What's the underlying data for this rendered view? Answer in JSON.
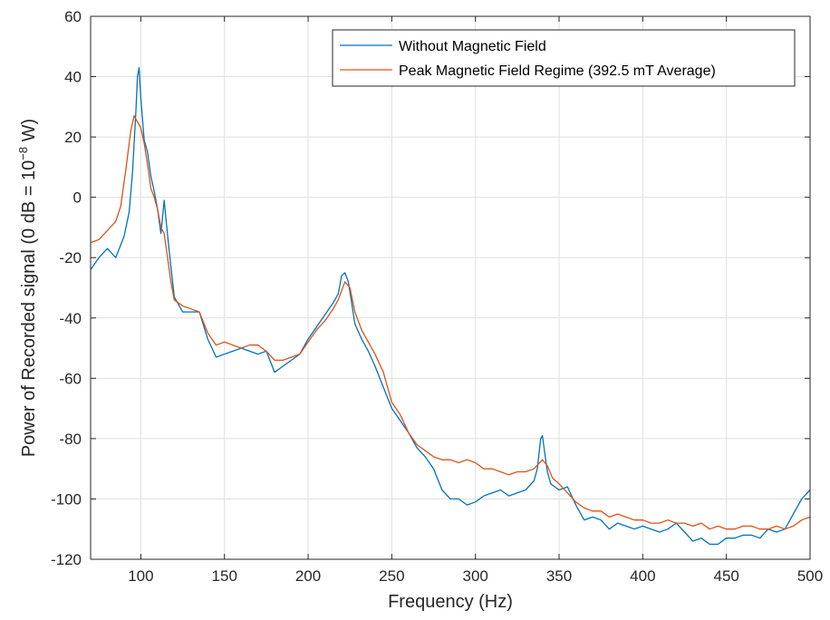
{
  "colors": {
    "series_blue": "#0072BD",
    "series_orange": "#D95319",
    "grid": "#dfdfdf",
    "axis": "#262626"
  },
  "chart_data": {
    "type": "line",
    "xlabel": "Frequency (Hz)",
    "ylabel_prefix": "Power of Recorded signal (0 dB = 10",
    "ylabel_exp": "−8",
    "ylabel_suffix": " W)",
    "xlim": [
      70,
      500
    ],
    "ylim": [
      -120,
      60
    ],
    "xticks": [
      100,
      150,
      200,
      250,
      300,
      350,
      400,
      450,
      500
    ],
    "yticks": [
      -120,
      -100,
      -80,
      -60,
      -40,
      -20,
      0,
      20,
      40,
      60
    ],
    "grid": true,
    "legend_placement": "top-right",
    "series": [
      {
        "name": "Without Magnetic Field",
        "color": "#0072BD",
        "x": [
          70,
          75,
          80,
          85,
          90,
          93,
          95,
          97,
          98,
          99,
          100,
          102,
          104,
          106,
          108,
          110,
          112,
          114,
          115,
          117,
          120,
          125,
          130,
          135,
          140,
          145,
          150,
          155,
          160,
          165,
          170,
          175,
          180,
          185,
          190,
          195,
          200,
          205,
          210,
          215,
          218,
          220,
          222,
          224,
          226,
          228,
          232,
          236,
          240,
          245,
          250,
          255,
          260,
          265,
          270,
          275,
          280,
          285,
          290,
          295,
          300,
          305,
          310,
          315,
          320,
          325,
          330,
          335,
          337,
          339,
          340,
          341,
          343,
          345,
          350,
          355,
          360,
          365,
          370,
          375,
          380,
          385,
          390,
          395,
          400,
          405,
          410,
          415,
          420,
          425,
          430,
          435,
          440,
          445,
          450,
          455,
          460,
          465,
          470,
          475,
          480,
          485,
          490,
          495,
          500
        ],
        "y": [
          -24,
          -20,
          -17,
          -20,
          -13,
          -5,
          8,
          28,
          40,
          43,
          33,
          19,
          15,
          7,
          2,
          -4,
          -12,
          -1,
          -7,
          -18,
          -33,
          -38,
          -38,
          -38,
          -47,
          -53,
          -52,
          -51,
          -50,
          -51,
          -52,
          -51,
          -58,
          -56,
          -54,
          -52,
          -47,
          -43,
          -39,
          -35,
          -32,
          -26,
          -25,
          -28,
          -35,
          -42,
          -47,
          -51,
          -56,
          -63,
          -70,
          -74,
          -78,
          -83,
          -86,
          -90,
          -97,
          -100,
          -100,
          -102,
          -101,
          -99,
          -98,
          -97,
          -99,
          -98,
          -97,
          -94,
          -90,
          -80,
          -79,
          -83,
          -91,
          -95,
          -97,
          -96,
          -102,
          -107,
          -106,
          -107,
          -110,
          -108,
          -109,
          -110,
          -109,
          -110,
          -111,
          -110,
          -108,
          -111,
          -114,
          -113,
          -115,
          -115,
          -113,
          -113,
          -112,
          -112,
          -113,
          -110,
          -111,
          -110,
          -105,
          -100,
          -97
        ]
      },
      {
        "name": "Peak Magnetic Field Regime (392.5 mT Average)",
        "color": "#D95319",
        "x": [
          70,
          75,
          80,
          85,
          88,
          91,
          94,
          96,
          98,
          100,
          102,
          104,
          106,
          108,
          110,
          112,
          114,
          116,
          118,
          120,
          125,
          130,
          135,
          140,
          145,
          150,
          155,
          160,
          165,
          170,
          175,
          180,
          185,
          190,
          195,
          200,
          205,
          210,
          215,
          218,
          220,
          222,
          225,
          228,
          232,
          236,
          240,
          245,
          250,
          255,
          260,
          265,
          270,
          275,
          280,
          285,
          290,
          295,
          300,
          305,
          310,
          315,
          320,
          325,
          330,
          335,
          340,
          343,
          346,
          350,
          355,
          360,
          365,
          370,
          375,
          380,
          385,
          390,
          395,
          400,
          405,
          410,
          415,
          420,
          425,
          430,
          435,
          440,
          445,
          450,
          455,
          460,
          465,
          470,
          475,
          480,
          485,
          490,
          495,
          500
        ],
        "y": [
          -15,
          -14,
          -11,
          -8,
          -3,
          9,
          22,
          27,
          25,
          23,
          18,
          11,
          3,
          0,
          -4,
          -10,
          -12,
          -20,
          -28,
          -34,
          -36,
          -37,
          -38,
          -45,
          -49,
          -48,
          -49,
          -50,
          -49,
          -49,
          -51,
          -54,
          -54,
          -53,
          -52,
          -48,
          -44,
          -41,
          -37,
          -34,
          -31,
          -28,
          -30,
          -38,
          -44,
          -48,
          -52,
          -58,
          -68,
          -72,
          -78,
          -82,
          -84,
          -86,
          -87,
          -87,
          -88,
          -87,
          -88,
          -90,
          -90,
          -91,
          -92,
          -91,
          -91,
          -90,
          -87,
          -89,
          -93,
          -95,
          -98,
          -101,
          -103,
          -104,
          -104,
          -106,
          -105,
          -106,
          -107,
          -107,
          -108,
          -108,
          -107,
          -108,
          -108,
          -109,
          -108,
          -110,
          -109,
          -110,
          -110,
          -109,
          -109,
          -110,
          -110,
          -109,
          -110,
          -109,
          -107,
          -106
        ]
      }
    ]
  }
}
